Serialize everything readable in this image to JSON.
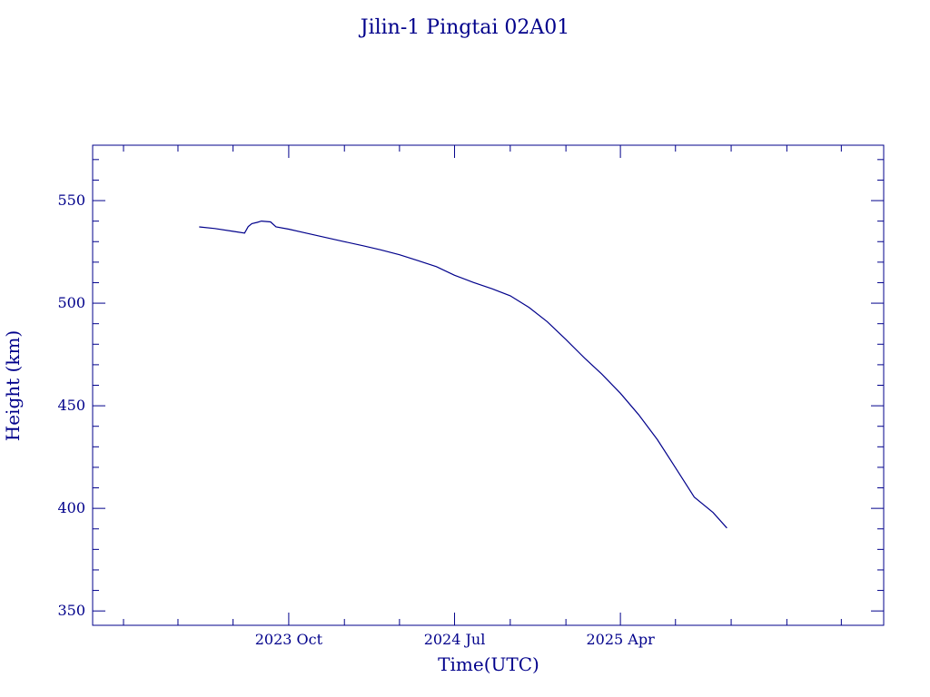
{
  "chart_data": {
    "type": "line",
    "title": "Jilin-1 Pingtai 02A01",
    "xlabel": "Time(UTC)",
    "ylabel": "Height (km)",
    "ylim": [
      343,
      577
    ],
    "xlim": [
      "2022-11-11",
      "2026-06-10"
    ],
    "x_tick_labels": [
      {
        "date": "2023-10-01",
        "label": "2023 Oct"
      },
      {
        "date": "2024-07-01",
        "label": "2024 Jul"
      },
      {
        "date": "2025-04-01",
        "label": "2025 Apr"
      }
    ],
    "y_tick_labels": [
      350,
      400,
      450,
      500,
      550
    ],
    "color": "#00008b",
    "grid": false,
    "series": [
      {
        "values": [
          [
            "2023-05-06",
            537.2
          ],
          [
            "2023-06-01",
            536.4
          ],
          [
            "2023-07-01",
            535.0
          ],
          [
            "2023-07-20",
            534.2
          ],
          [
            "2023-07-26",
            537.3
          ],
          [
            "2023-08-01",
            538.8
          ],
          [
            "2023-08-10",
            539.4
          ],
          [
            "2023-08-17",
            540.0
          ],
          [
            "2023-09-01",
            539.6
          ],
          [
            "2023-09-10",
            537.2
          ],
          [
            "2023-10-01",
            536.1
          ],
          [
            "2023-11-01",
            534.0
          ],
          [
            "2023-12-01",
            532.0
          ],
          [
            "2024-01-01",
            530.0
          ],
          [
            "2024-02-01",
            528.0
          ],
          [
            "2024-03-01",
            526.0
          ],
          [
            "2024-04-01",
            523.6
          ],
          [
            "2024-05-01",
            520.8
          ],
          [
            "2024-06-01",
            517.8
          ],
          [
            "2024-07-01",
            513.6
          ],
          [
            "2024-08-01",
            510.1
          ],
          [
            "2024-09-01",
            507.0
          ],
          [
            "2024-10-01",
            503.6
          ],
          [
            "2024-11-01",
            497.9
          ],
          [
            "2024-12-01",
            491.0
          ],
          [
            "2025-01-01",
            482.3
          ],
          [
            "2025-02-01",
            473.2
          ],
          [
            "2025-03-01",
            465.5
          ],
          [
            "2025-04-01",
            456.1
          ],
          [
            "2025-05-01",
            445.7
          ],
          [
            "2025-06-01",
            433.5
          ],
          [
            "2025-07-01",
            419.8
          ],
          [
            "2025-08-01",
            405.5
          ],
          [
            "2025-09-01",
            398.0
          ],
          [
            "2025-09-24",
            390.4
          ]
        ]
      }
    ]
  }
}
